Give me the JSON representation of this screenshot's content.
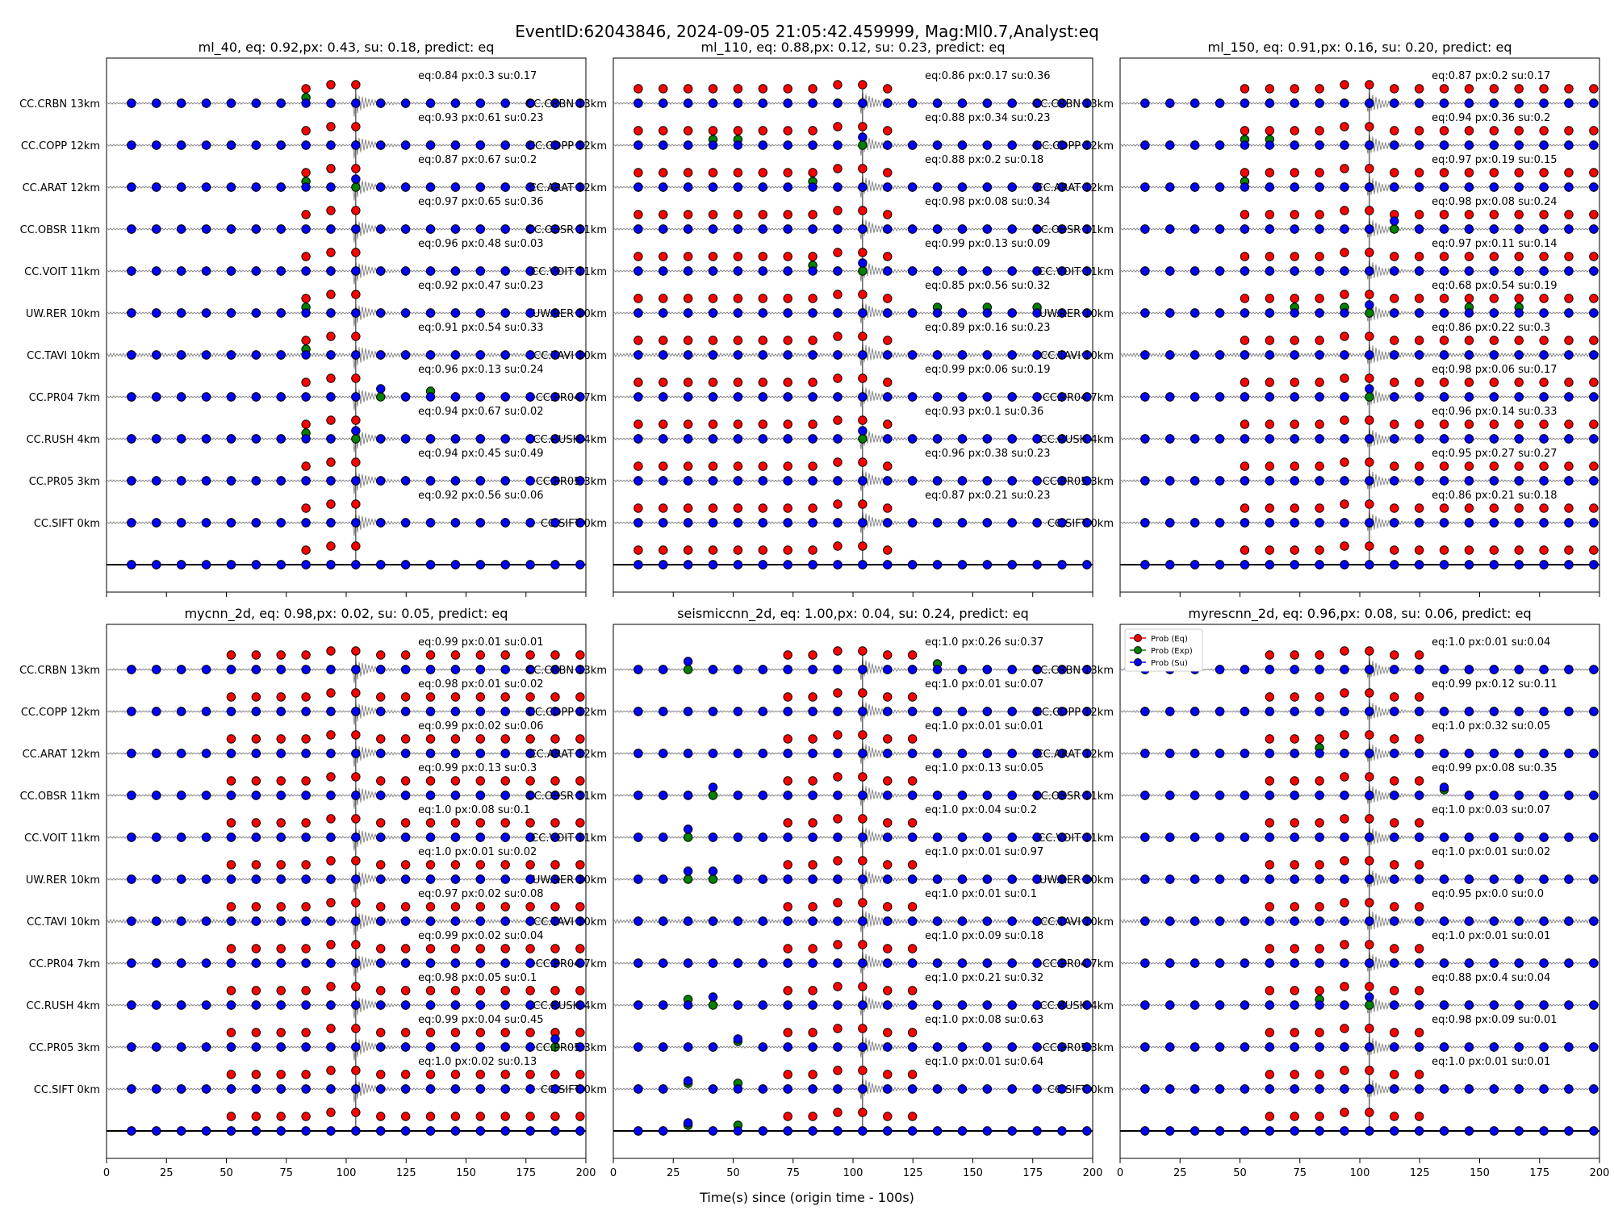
{
  "figure": {
    "title": "EventID:62043846, 2024-09-05 21:05:42.459999, Mag:Ml0.7,Analyst:eq",
    "xlabel": "Time(s) since (origin time - 100s)"
  },
  "stations": [
    "CC.CRBN 13km",
    "CC.COPP 12km",
    "CC.ARAT 12km",
    "CC.OBSR 11km",
    "CC.VOIT 11km",
    "UW.RER 10km",
    "CC.TAVI 10km",
    "CC.PR04 7km",
    "CC.RUSH 4km",
    "CC.PR05 3km",
    "CC.SIFT 0km"
  ],
  "legend": {
    "eq": "Prob (Eq)",
    "exp": "Prob (Exp)",
    "su": "Prob (Su)"
  },
  "colors": {
    "eq": "#ff0000",
    "exp": "#008000",
    "su": "#0000ff",
    "waveform": "#808080",
    "marker_edge": "#000000"
  },
  "chart_data": [
    {
      "type": "scatter",
      "title": "ml_40, eq: 0.92,px: 0.43, su: 0.18, predict: eq",
      "xlim": [
        0,
        200
      ],
      "xticks": [
        0,
        25,
        50,
        75,
        100,
        125,
        150,
        175,
        200
      ],
      "show_xticklabels": false,
      "onset": 104,
      "eq_start": 83,
      "eq_end": 104,
      "exp_extra": [
        [
          0,
          83
        ],
        [
          2,
          83
        ],
        [
          5,
          83
        ],
        [
          6,
          83
        ],
        [
          7,
          135
        ],
        [
          8,
          83
        ]
      ],
      "su_lift": [
        [
          2,
          104
        ],
        [
          7,
          114
        ],
        [
          8,
          104
        ]
      ],
      "annotations": [
        "eq:0.84  px:0.3    su:0.17",
        "eq:0.93  px:0.61  su:0.23",
        "eq:0.87  px:0.67  su:0.2",
        "eq:0.97  px:0.65  su:0.36",
        "eq:0.96  px:0.48  su:0.03",
        "eq:0.92  px:0.47  su:0.23",
        "eq:0.91  px:0.54  su:0.33",
        "eq:0.96  px:0.13  su:0.24",
        "eq:0.94  px:0.67  su:0.02",
        "eq:0.94  px:0.45  su:0.49",
        "eq:0.92  px:0.56  su:0.06"
      ]
    },
    {
      "type": "scatter",
      "title": "ml_110, eq: 0.88,px: 0.12, su: 0.23, predict: eq",
      "xlim": [
        0,
        200
      ],
      "xticks": [
        0,
        25,
        50,
        75,
        100,
        125,
        150,
        175,
        200
      ],
      "show_xticklabels": false,
      "onset": 104,
      "eq_start": 10,
      "eq_end": 114,
      "exp_extra": [
        [
          1,
          42
        ],
        [
          1,
          52
        ],
        [
          2,
          83
        ],
        [
          4,
          83
        ],
        [
          5,
          135
        ],
        [
          5,
          156
        ],
        [
          5,
          177
        ]
      ],
      "su_lift": [
        [
          1,
          104
        ],
        [
          4,
          104
        ],
        [
          8,
          104
        ]
      ],
      "annotations": [
        "eq:0.86  px:0.17  su:0.36",
        "eq:0.88  px:0.34  su:0.23",
        "eq:0.88  px:0.2    su:0.18",
        "eq:0.98  px:0.08  su:0.34",
        "eq:0.99  px:0.13  su:0.09",
        "eq:0.85  px:0.56  su:0.32",
        "eq:0.89  px:0.16  su:0.23",
        "eq:0.99  px:0.06  su:0.19",
        "eq:0.93  px:0.1    su:0.36",
        "eq:0.96  px:0.38  su:0.23",
        "eq:0.87  px:0.21  su:0.23"
      ]
    },
    {
      "type": "scatter",
      "title": "ml_150, eq: 0.91,px: 0.16, su: 0.20, predict: eq",
      "xlim": [
        0,
        200
      ],
      "xticks": [
        0,
        25,
        50,
        75,
        100,
        125,
        150,
        175,
        200
      ],
      "show_xticklabels": false,
      "onset": 104,
      "eq_start": 52,
      "eq_end": 200,
      "exp_extra": [
        [
          1,
          52
        ],
        [
          1,
          62
        ],
        [
          2,
          52
        ],
        [
          5,
          73
        ],
        [
          5,
          94
        ],
        [
          5,
          146
        ],
        [
          5,
          167
        ]
      ],
      "su_lift": [
        [
          3,
          114
        ],
        [
          5,
          104
        ],
        [
          7,
          104
        ]
      ],
      "annotations": [
        "eq:0.87  px:0.2    su:0.17",
        "eq:0.94  px:0.36  su:0.2",
        "eq:0.97  px:0.19  su:0.15",
        "eq:0.98  px:0.08  su:0.24",
        "eq:0.97  px:0.11  su:0.14",
        "eq:0.68  px:0.54  su:0.19",
        "eq:0.86  px:0.22  su:0.3",
        "eq:0.98  px:0.06  su:0.17",
        "eq:0.96  px:0.14  su:0.33",
        "eq:0.95  px:0.27  su:0.27",
        "eq:0.86  px:0.21  su:0.18"
      ]
    },
    {
      "type": "scatter",
      "title": "mycnn_2d, eq: 0.98,px: 0.02, su: 0.05, predict: eq",
      "xlim": [
        0,
        200
      ],
      "xticks": [
        0,
        25,
        50,
        75,
        100,
        125,
        150,
        175,
        200
      ],
      "show_xticklabels": true,
      "onset": 104,
      "eq_start": 52,
      "eq_end": 200,
      "exp_extra": [],
      "su_lift": [
        [
          9,
          188
        ]
      ],
      "annotations": [
        "eq:0.99  px:0.01  su:0.01",
        "eq:0.98  px:0.01  su:0.02",
        "eq:0.99  px:0.02  su:0.06",
        "eq:0.99  px:0.13  su:0.3",
        "eq:1.0    px:0.08  su:0.1",
        "eq:1.0    px:0.01  su:0.02",
        "eq:0.97  px:0.02  su:0.08",
        "eq:0.99  px:0.02  su:0.04",
        "eq:0.98  px:0.05  su:0.1",
        "eq:0.99  px:0.04  su:0.45",
        "eq:1.0    px:0.02  su:0.13"
      ]
    },
    {
      "type": "scatter",
      "title": "seismiccnn_2d, eq: 1.00,px: 0.04, su: 0.24, predict: eq",
      "xlim": [
        0,
        200
      ],
      "xticks": [
        0,
        25,
        50,
        75,
        100,
        125,
        150,
        175,
        200
      ],
      "show_xticklabels": true,
      "onset": 104,
      "eq_start": 73,
      "eq_end": 125,
      "exp_extra": [
        [
          0,
          135
        ],
        [
          8,
          31
        ],
        [
          9,
          52
        ],
        [
          10,
          31
        ],
        [
          10,
          52
        ]
      ],
      "su_lift": [
        [
          0,
          31
        ],
        [
          3,
          42
        ],
        [
          4,
          31
        ],
        [
          5,
          31
        ],
        [
          5,
          42
        ],
        [
          8,
          42
        ],
        [
          9,
          52
        ],
        [
          10,
          31
        ]
      ],
      "annotations": [
        "eq:1.0    px:0.26  su:0.37",
        "eq:1.0    px:0.01  su:0.07",
        "eq:1.0    px:0.01  su:0.01",
        "eq:1.0    px:0.13  su:0.05",
        "eq:1.0    px:0.04  su:0.2",
        "eq:1.0    px:0.01  su:0.97",
        "eq:1.0    px:0.01  su:0.1",
        "eq:1.0    px:0.09  su:0.18",
        "eq:1.0    px:0.21  su:0.32",
        "eq:1.0    px:0.08  su:0.63",
        "eq:1.0    px:0.01  su:0.64"
      ]
    },
    {
      "type": "scatter",
      "title": "myrescnn_2d, eq: 0.96,px: 0.08, su: 0.06, predict: eq",
      "xlim": [
        0,
        200
      ],
      "xticks": [
        0,
        25,
        50,
        75,
        100,
        125,
        150,
        175,
        200
      ],
      "show_xticklabels": true,
      "onset": 104,
      "eq_start": 62,
      "eq_end": 125,
      "exp_extra": [
        [
          2,
          83
        ],
        [
          3,
          135
        ],
        [
          8,
          83
        ]
      ],
      "su_lift": [
        [
          3,
          135
        ],
        [
          8,
          104
        ]
      ],
      "legend_location": "upper left",
      "annotations": [
        "eq:1.0    px:0.01  su:0.04",
        "eq:0.99  px:0.12  su:0.11",
        "eq:1.0    px:0.32  su:0.05",
        "eq:0.99  px:0.08  su:0.35",
        "eq:1.0    px:0.03  su:0.07",
        "eq:1.0    px:0.01  su:0.02",
        "eq:0.95  px:0.0    su:0.0",
        "eq:1.0    px:0.01  su:0.01",
        "eq:0.88  px:0.4    su:0.04",
        "eq:0.98  px:0.09  su:0.01",
        "eq:1.0    px:0.01  su:0.01"
      ]
    }
  ]
}
